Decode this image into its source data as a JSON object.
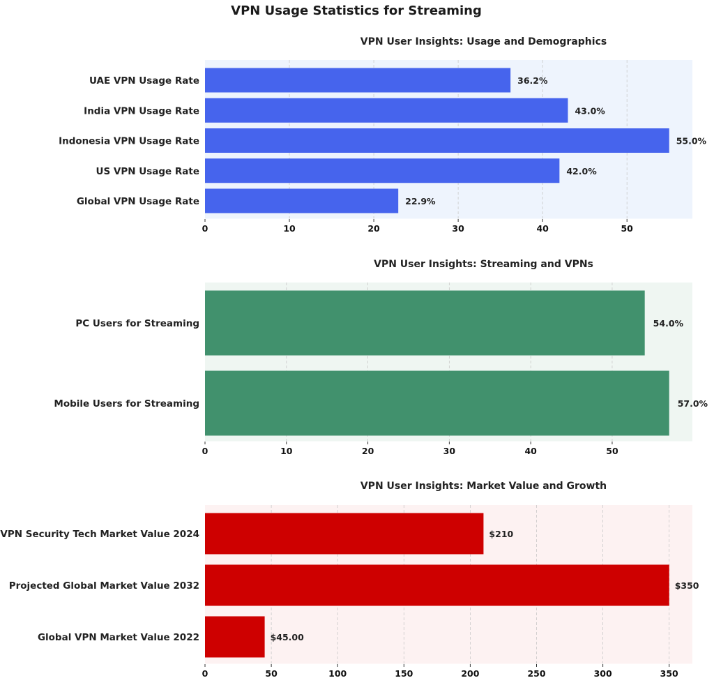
{
  "title": "VPN Usage Statistics for Streaming",
  "chart_data": [
    {
      "type": "bar",
      "orientation": "horizontal",
      "title": "VPN User Insights: Usage and Demographics",
      "categories": [
        "UAE VPN Usage Rate",
        "India VPN Usage Rate",
        "Indonesia VPN Usage Rate",
        "US VPN Usage Rate",
        "Global VPN Usage Rate"
      ],
      "values": [
        36.2,
        43.0,
        55.0,
        42.0,
        22.9
      ],
      "labels": [
        "36.2%",
        "43.0%",
        "55.0%",
        "42.0%",
        "22.9%"
      ],
      "xticks": [
        0,
        10,
        20,
        30,
        40,
        50
      ],
      "xlim": [
        0,
        57.75
      ],
      "grid": "vertical dashed",
      "bar_color": "#4664ED",
      "bg_color": "#EEF4FD"
    },
    {
      "type": "bar",
      "orientation": "horizontal",
      "title": "VPN User Insights: Streaming and VPNs",
      "categories": [
        "PC Users for Streaming",
        "Mobile Users for Streaming"
      ],
      "values": [
        54.0,
        57.0
      ],
      "labels": [
        "54.0%",
        "57.0%"
      ],
      "xticks": [
        0,
        10,
        20,
        30,
        40,
        50
      ],
      "xlim": [
        0,
        59.85
      ],
      "grid": "vertical dashed",
      "bar_color": "#41916D",
      "bg_color": "#EFF6F2"
    },
    {
      "type": "bar",
      "orientation": "horizontal",
      "title": "VPN User Insights: Market Value and Growth",
      "categories": [
        "VPN Security Tech Market Value 2024",
        "Projected Global Market Value 2032",
        "Global VPN Market Value 2022"
      ],
      "values": [
        210,
        350,
        45
      ],
      "labels": [
        "$210",
        "$350",
        "$45.00"
      ],
      "xticks": [
        0,
        50,
        100,
        150,
        200,
        250,
        300,
        350
      ],
      "xlim": [
        0,
        367.5
      ],
      "grid": "vertical dashed",
      "bar_color": "#CE0000",
      "bg_color": "#FDF2F2"
    }
  ]
}
